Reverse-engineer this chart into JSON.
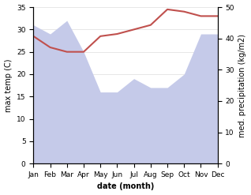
{
  "months": [
    "Jan",
    "Feb",
    "Mar",
    "Apr",
    "May",
    "Jun",
    "Jul",
    "Aug",
    "Sep",
    "Oct",
    "Nov",
    "Dec"
  ],
  "x": [
    1,
    2,
    3,
    4,
    5,
    6,
    7,
    8,
    9,
    10,
    11,
    12
  ],
  "temperature": [
    28.5,
    26.0,
    25.0,
    25.0,
    28.5,
    29.0,
    30.0,
    31.0,
    34.5,
    34.0,
    33.0,
    33.0
  ],
  "precipitation_left_scale": [
    31,
    29,
    32,
    25,
    16,
    16,
    19,
    17,
    17,
    20,
    29,
    29
  ],
  "temp_color": "#c0504d",
  "precip_color": "#c5cae9",
  "xlabel": "date (month)",
  "ylabel_left": "max temp (C)",
  "ylabel_right": "med. precipitation (kg/m2)",
  "ylim_left": [
    0,
    35
  ],
  "ylim_right": [
    0,
    50
  ],
  "yticks_left": [
    0,
    5,
    10,
    15,
    20,
    25,
    30,
    35
  ],
  "yticks_right": [
    0,
    10,
    20,
    30,
    40,
    50
  ],
  "bg_color": "#ffffff"
}
